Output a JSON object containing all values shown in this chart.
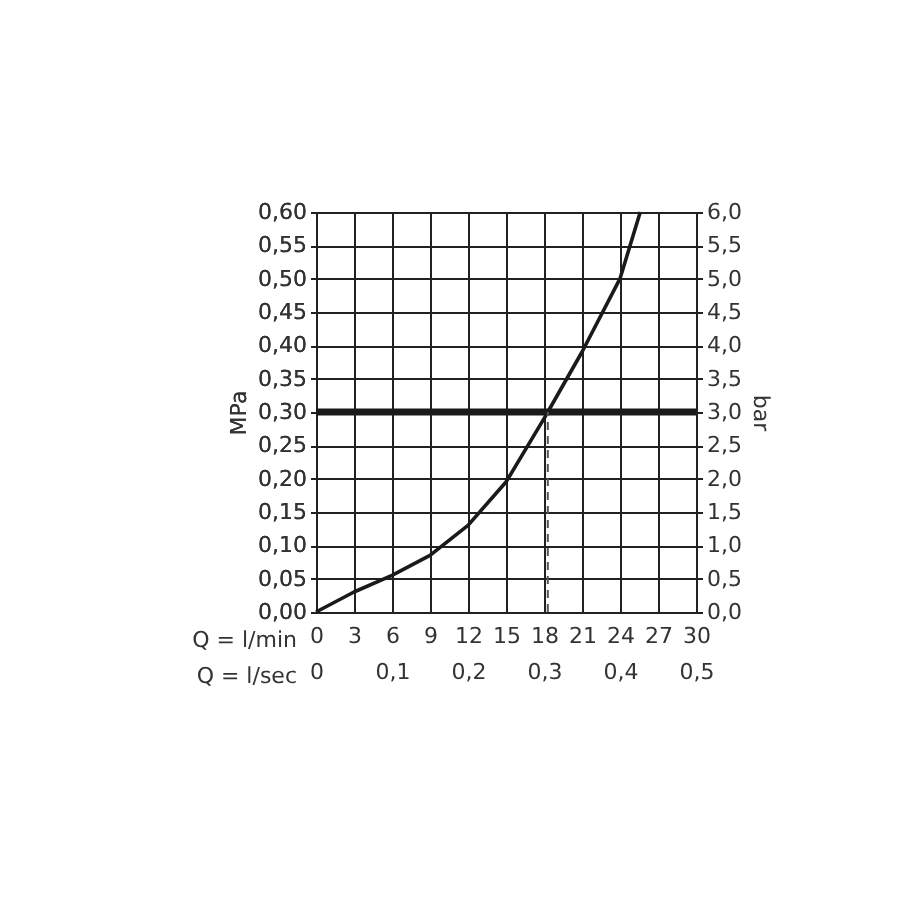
{
  "chart_data": {
    "type": "line",
    "xlabel": "Q = l/min",
    "x2label": "Q = l/sec",
    "ylabel": "MPa",
    "y2label": "bar",
    "x": [
      0,
      3,
      6,
      9,
      12,
      15,
      18,
      18.3,
      21,
      24,
      25.6
    ],
    "series": [
      {
        "color": "#1a1a1a",
        "values": [
          0,
          0.03,
          0.055,
          0.085,
          0.13,
          0.195,
          0.29,
          0.3,
          0.39,
          0.5,
          0.6
        ]
      }
    ],
    "xlim": [
      0,
      30
    ],
    "xticks": [
      0,
      3,
      6,
      9,
      12,
      15,
      18,
      21,
      24,
      27,
      30
    ],
    "x2lim": [
      0,
      0.5
    ],
    "x2ticks": [
      {
        "value": 0,
        "label": "0"
      },
      {
        "value": 0.1,
        "label": "0,1"
      },
      {
        "value": 0.2,
        "label": "0,2"
      },
      {
        "value": 0.3,
        "label": "0,3"
      },
      {
        "value": 0.4,
        "label": "0,4"
      },
      {
        "value": 0.5,
        "label": "0,5"
      }
    ],
    "ylim": [
      0,
      0.6
    ],
    "yticks": [
      {
        "value": 0,
        "label": "0,00"
      },
      {
        "value": 0.05,
        "label": "0,05"
      },
      {
        "value": 0.1,
        "label": "0,10"
      },
      {
        "value": 0.15,
        "label": "0,15"
      },
      {
        "value": 0.2,
        "label": "0,20"
      },
      {
        "value": 0.25,
        "label": "0,25"
      },
      {
        "value": 0.3,
        "label": "0,30"
      },
      {
        "value": 0.35,
        "label": "0,35"
      },
      {
        "value": 0.4,
        "label": "0,40"
      },
      {
        "value": 0.45,
        "label": "0,45"
      },
      {
        "value": 0.5,
        "label": "0,50"
      },
      {
        "value": 0.55,
        "label": "0,55"
      },
      {
        "value": 0.6,
        "label": "0,60"
      }
    ],
    "y2lim": [
      0,
      6
    ],
    "y2ticks": [
      {
        "value": 0,
        "label": "0,0"
      },
      {
        "value": 0.5,
        "label": "0,5"
      },
      {
        "value": 1,
        "label": "1,0"
      },
      {
        "value": 1.5,
        "label": "1,5"
      },
      {
        "value": 2,
        "label": "2,0"
      },
      {
        "value": 2.5,
        "label": "2,5"
      },
      {
        "value": 3,
        "label": "3,0"
      },
      {
        "value": 3.5,
        "label": "3,5"
      },
      {
        "value": 4,
        "label": "4,0"
      },
      {
        "value": 4.5,
        "label": "4,5"
      },
      {
        "value": 5,
        "label": "5,0"
      },
      {
        "value": 5.5,
        "label": "5,5"
      },
      {
        "value": 6,
        "label": "6,0"
      }
    ],
    "ref_lines": [
      {
        "axis": "y",
        "value": 0.3,
        "color": "#1a1a1a",
        "line_style": "solid"
      },
      {
        "axis": "x",
        "value": 18.3,
        "color": "#555555",
        "line_style": "dashed"
      }
    ],
    "grid": true,
    "marker": "none",
    "line_style": "solid"
  }
}
